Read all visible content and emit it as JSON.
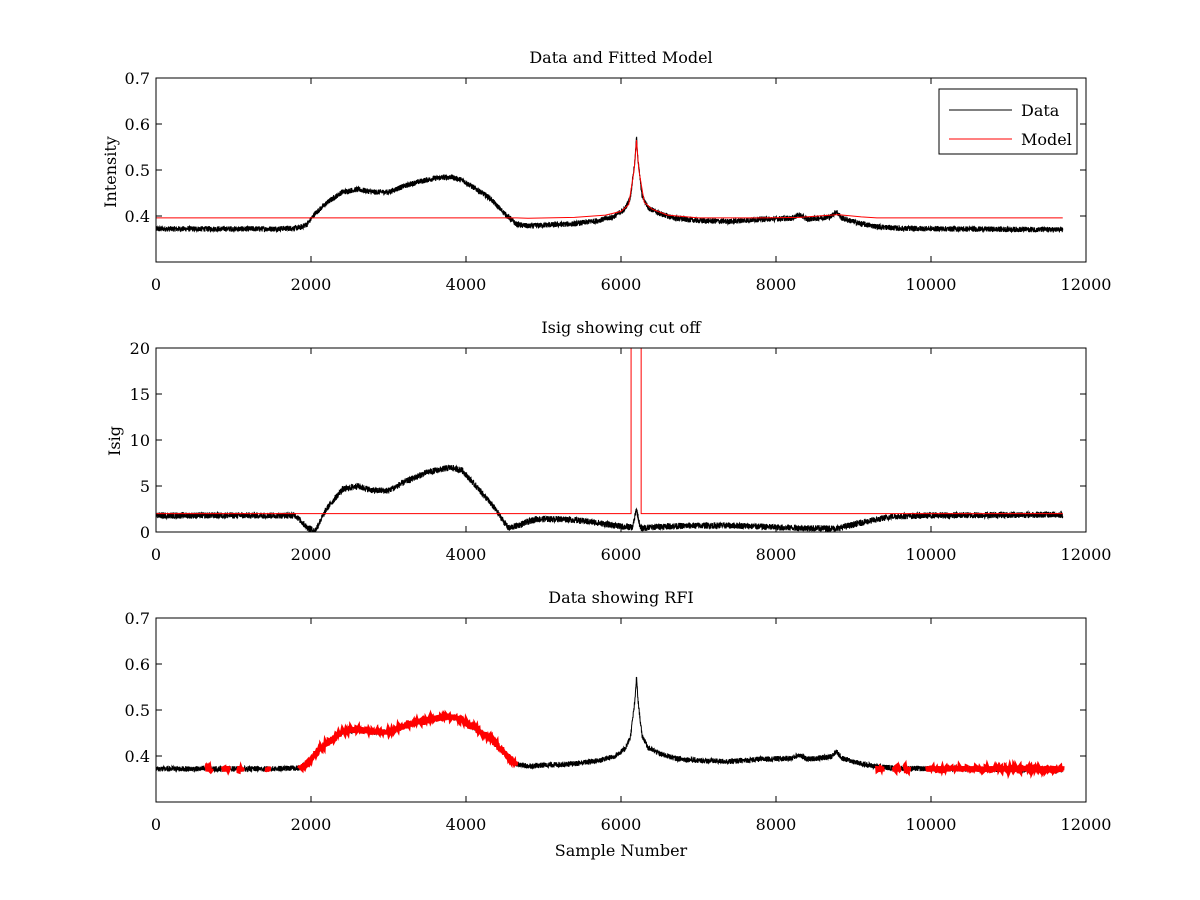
{
  "chart_data": [
    {
      "type": "line",
      "title": "Data and Fitted Model",
      "xlabel": "",
      "ylabel": "Intensity",
      "xlim": [
        0,
        12000
      ],
      "ylim": [
        0.3,
        0.7
      ],
      "xticks": [
        0,
        2000,
        4000,
        6000,
        8000,
        10000,
        12000
      ],
      "xtick_labels": [
        "0",
        "2000",
        "4000",
        "6000",
        "8000",
        "10000",
        "12000"
      ],
      "yticks": [
        0.4,
        0.5,
        0.6,
        0.7
      ],
      "ytick_labels": [
        "0.4",
        "0.5",
        "0.6",
        "0.7"
      ],
      "grid": false,
      "legend": {
        "placement": "top-right",
        "entries": [
          "Data",
          "Model"
        ]
      },
      "series": [
        {
          "name": "Data",
          "color": "#000000",
          "noise": 0.006,
          "points": [
            [
              0,
              0.372
            ],
            [
              1500,
              0.372
            ],
            [
              1850,
              0.374
            ],
            [
              1950,
              0.382
            ],
            [
              2050,
              0.405
            ],
            [
              2200,
              0.428
            ],
            [
              2400,
              0.452
            ],
            [
              2600,
              0.458
            ],
            [
              2800,
              0.452
            ],
            [
              3000,
              0.452
            ],
            [
              3200,
              0.465
            ],
            [
              3400,
              0.475
            ],
            [
              3600,
              0.482
            ],
            [
              3800,
              0.485
            ],
            [
              3950,
              0.478
            ],
            [
              4100,
              0.462
            ],
            [
              4300,
              0.44
            ],
            [
              4500,
              0.405
            ],
            [
              4650,
              0.382
            ],
            [
              4800,
              0.378
            ],
            [
              5000,
              0.38
            ],
            [
              5400,
              0.383
            ],
            [
              5700,
              0.39
            ],
            [
              5900,
              0.398
            ],
            [
              6050,
              0.415
            ],
            [
              6120,
              0.44
            ],
            [
              6180,
              0.52
            ],
            [
              6200,
              0.572
            ],
            [
              6220,
              0.52
            ],
            [
              6270,
              0.445
            ],
            [
              6350,
              0.418
            ],
            [
              6500,
              0.405
            ],
            [
              6700,
              0.395
            ],
            [
              7000,
              0.39
            ],
            [
              7400,
              0.388
            ],
            [
              7800,
              0.393
            ],
            [
              8200,
              0.395
            ],
            [
              8300,
              0.403
            ],
            [
              8400,
              0.393
            ],
            [
              8700,
              0.398
            ],
            [
              8780,
              0.41
            ],
            [
              8850,
              0.395
            ],
            [
              9100,
              0.383
            ],
            [
              9300,
              0.377
            ],
            [
              9600,
              0.373
            ],
            [
              11700,
              0.37
            ]
          ]
        },
        {
          "name": "Model",
          "color": "#ff0000",
          "noise": 0,
          "points": [
            [
              0,
              0.396
            ],
            [
              4650,
              0.396
            ],
            [
              4800,
              0.395
            ],
            [
              5400,
              0.397
            ],
            [
              5800,
              0.402
            ],
            [
              6000,
              0.41
            ],
            [
              6100,
              0.425
            ],
            [
              6170,
              0.5
            ],
            [
              6200,
              0.565
            ],
            [
              6230,
              0.5
            ],
            [
              6300,
              0.43
            ],
            [
              6400,
              0.415
            ],
            [
              6600,
              0.402
            ],
            [
              7000,
              0.396
            ],
            [
              7800,
              0.396
            ],
            [
              8300,
              0.397
            ],
            [
              8800,
              0.403
            ],
            [
              9100,
              0.398
            ],
            [
              9300,
              0.396
            ],
            [
              11700,
              0.396
            ]
          ]
        }
      ]
    },
    {
      "type": "line",
      "title": "Isig showing cut off",
      "xlabel": "",
      "ylabel": "Isig",
      "xlim": [
        0,
        12000
      ],
      "ylim": [
        0,
        20
      ],
      "xticks": [
        0,
        2000,
        4000,
        6000,
        8000,
        10000,
        12000
      ],
      "xtick_labels": [
        "0",
        "2000",
        "4000",
        "6000",
        "8000",
        "10000",
        "12000"
      ],
      "yticks": [
        0,
        5,
        10,
        15,
        20
      ],
      "ytick_labels": [
        "0",
        "5",
        "10",
        "15",
        "20"
      ],
      "grid": false,
      "series": [
        {
          "name": "Isig",
          "color": "#000000",
          "noise": 0.35,
          "points": [
            [
              0,
              1.8
            ],
            [
              1800,
              1.8
            ],
            [
              1950,
              0.5
            ],
            [
              2050,
              0.1
            ],
            [
              2200,
              2.5
            ],
            [
              2400,
              4.6
            ],
            [
              2600,
              5.0
            ],
            [
              2800,
              4.5
            ],
            [
              3000,
              4.5
            ],
            [
              3200,
              5.4
            ],
            [
              3500,
              6.5
            ],
            [
              3800,
              7.0
            ],
            [
              3950,
              6.7
            ],
            [
              4150,
              4.8
            ],
            [
              4350,
              2.8
            ],
            [
              4550,
              0.4
            ],
            [
              4700,
              0.8
            ],
            [
              4900,
              1.4
            ],
            [
              5300,
              1.4
            ],
            [
              5700,
              1.0
            ],
            [
              6000,
              0.6
            ],
            [
              6150,
              0.5
            ],
            [
              6200,
              2.5
            ],
            [
              6250,
              0.4
            ],
            [
              6500,
              0.6
            ],
            [
              7000,
              0.7
            ],
            [
              7500,
              0.7
            ],
            [
              8000,
              0.5
            ],
            [
              8500,
              0.4
            ],
            [
              8800,
              0.4
            ],
            [
              9100,
              1.0
            ],
            [
              9500,
              1.7
            ],
            [
              10000,
              1.8
            ],
            [
              11700,
              1.9
            ]
          ]
        },
        {
          "name": "Cut off",
          "color": "#ff0000",
          "noise": 0,
          "points": [
            [
              0,
              2.0
            ],
            [
              6130,
              2.0
            ],
            [
              6130,
              20.5
            ],
            [
              6260,
              20.5
            ],
            [
              6260,
              2.0
            ],
            [
              11700,
              2.0
            ]
          ]
        }
      ]
    },
    {
      "type": "line",
      "title": "Data showing RFI",
      "xlabel": "Sample Number",
      "ylabel": "",
      "xlim": [
        0,
        12000
      ],
      "ylim": [
        0.3,
        0.7
      ],
      "xticks": [
        0,
        2000,
        4000,
        6000,
        8000,
        10000,
        12000
      ],
      "xtick_labels": [
        "0",
        "2000",
        "4000",
        "6000",
        "8000",
        "10000",
        "12000"
      ],
      "yticks": [
        0.4,
        0.5,
        0.6,
        0.7
      ],
      "ytick_labels": [
        "0.4",
        "0.5",
        "0.6",
        "0.7"
      ],
      "grid": false,
      "series": [
        {
          "name": "Data",
          "color": "#000000",
          "noise": 0.006,
          "points": [
            [
              0,
              0.372
            ],
            [
              1500,
              0.372
            ],
            [
              1850,
              0.374
            ],
            [
              1950,
              0.382
            ],
            [
              2050,
              0.405
            ],
            [
              2200,
              0.428
            ],
            [
              2400,
              0.452
            ],
            [
              2600,
              0.458
            ],
            [
              2800,
              0.452
            ],
            [
              3000,
              0.452
            ],
            [
              3200,
              0.465
            ],
            [
              3400,
              0.475
            ],
            [
              3600,
              0.482
            ],
            [
              3800,
              0.485
            ],
            [
              3950,
              0.478
            ],
            [
              4100,
              0.462
            ],
            [
              4300,
              0.44
            ],
            [
              4500,
              0.405
            ],
            [
              4650,
              0.382
            ],
            [
              4800,
              0.378
            ],
            [
              5000,
              0.38
            ],
            [
              5400,
              0.383
            ],
            [
              5700,
              0.39
            ],
            [
              5900,
              0.398
            ],
            [
              6050,
              0.415
            ],
            [
              6120,
              0.44
            ],
            [
              6180,
              0.52
            ],
            [
              6200,
              0.572
            ],
            [
              6220,
              0.52
            ],
            [
              6270,
              0.445
            ],
            [
              6350,
              0.418
            ],
            [
              6500,
              0.405
            ],
            [
              6700,
              0.395
            ],
            [
              7000,
              0.39
            ],
            [
              7400,
              0.388
            ],
            [
              7800,
              0.393
            ],
            [
              8200,
              0.395
            ],
            [
              8300,
              0.403
            ],
            [
              8400,
              0.393
            ],
            [
              8700,
              0.398
            ],
            [
              8780,
              0.41
            ],
            [
              8850,
              0.395
            ],
            [
              9100,
              0.383
            ],
            [
              9300,
              0.377
            ],
            [
              9600,
              0.373
            ],
            [
              11700,
              0.37
            ]
          ]
        },
        {
          "name": "RFI",
          "color": "#ff0000",
          "marker": "dot",
          "noise": 0.006,
          "points": [
            [
              1850,
              0.374
            ],
            [
              1950,
              0.382
            ],
            [
              2050,
              0.405
            ],
            [
              2200,
              0.428
            ],
            [
              2400,
              0.452
            ],
            [
              2600,
              0.458
            ],
            [
              2800,
              0.452
            ],
            [
              3000,
              0.452
            ],
            [
              3200,
              0.465
            ],
            [
              3400,
              0.475
            ],
            [
              3600,
              0.482
            ],
            [
              3800,
              0.485
            ],
            [
              3950,
              0.478
            ],
            [
              4100,
              0.462
            ],
            [
              4300,
              0.44
            ],
            [
              4500,
              0.405
            ],
            [
              4650,
              0.382
            ]
          ],
          "extra_ranges": [
            [
              650,
              720
            ],
            [
              860,
              940
            ],
            [
              1060,
              1120
            ],
            [
              1420,
              1460
            ],
            [
              9300,
              9380
            ],
            [
              9520,
              9600
            ],
            [
              9650,
              9720
            ],
            [
              9950,
              11700
            ]
          ],
          "extra_level": 0.372
        }
      ]
    }
  ]
}
